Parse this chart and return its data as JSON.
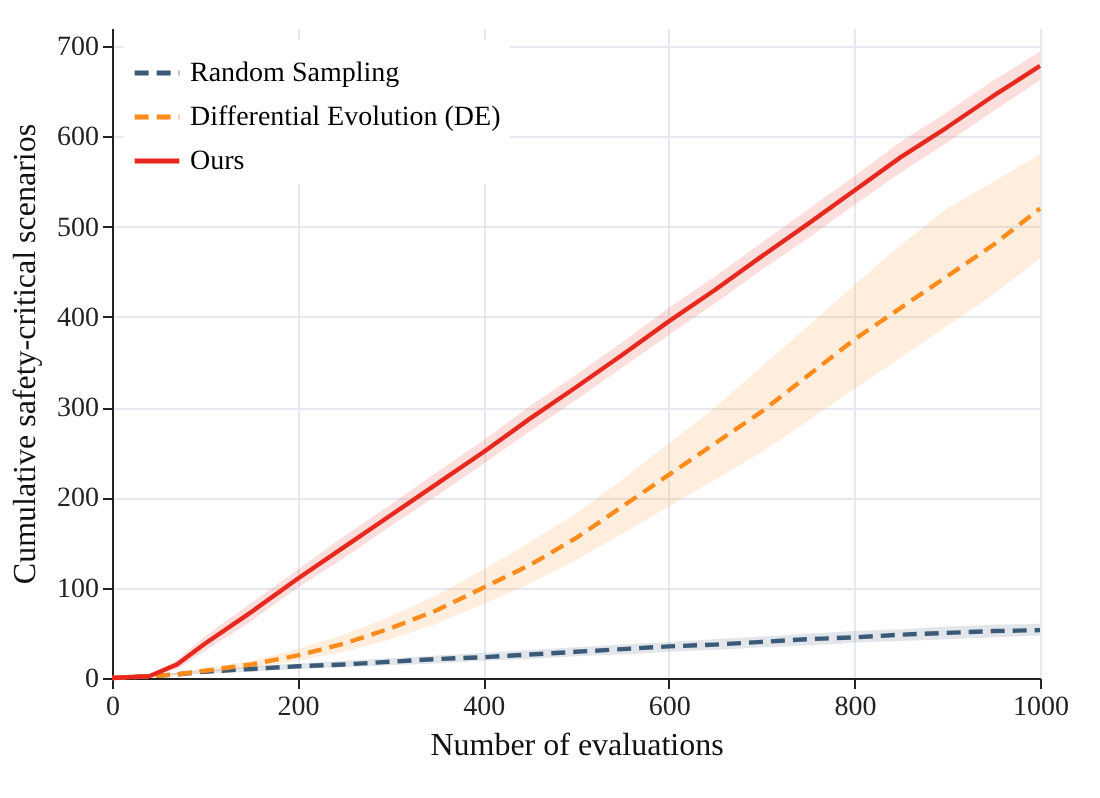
{
  "chart_data": {
    "type": "line",
    "xlabel": "Number of evaluations",
    "ylabel": "Cumulative safety-critical scenarios",
    "x": [
      0,
      40,
      70,
      100,
      150,
      200,
      250,
      300,
      350,
      400,
      450,
      500,
      550,
      600,
      650,
      700,
      750,
      800,
      850,
      900,
      950,
      1000
    ],
    "series": [
      {
        "name": "Random Sampling",
        "color": "#3b5a78",
        "line_style": "dashed",
        "values": [
          0,
          2,
          4,
          7,
          10,
          13,
          15,
          18,
          21,
          23,
          26,
          29,
          32,
          35,
          37,
          40,
          43,
          45,
          48,
          50,
          52,
          53
        ],
        "lower": [
          0,
          1,
          3,
          5,
          7,
          10,
          12,
          14,
          16,
          19,
          21,
          24,
          26,
          29,
          31,
          34,
          36,
          39,
          41,
          43,
          45,
          47
        ],
        "upper": [
          0,
          3,
          6,
          9,
          13,
          16,
          19,
          22,
          25,
          28,
          31,
          34,
          37,
          40,
          43,
          46,
          49,
          52,
          54,
          57,
          59,
          60
        ]
      },
      {
        "name": "Differential Evolution (DE)",
        "color": "#ff8c1a",
        "line_style": "dashed",
        "values": [
          0,
          2,
          4,
          8,
          15,
          25,
          38,
          55,
          75,
          100,
          125,
          155,
          190,
          225,
          260,
          295,
          335,
          375,
          410,
          445,
          480,
          520
        ],
        "lower": [
          0,
          1,
          3,
          6,
          11,
          19,
          29,
          43,
          60,
          82,
          104,
          131,
          160,
          190,
          220,
          250,
          285,
          320,
          355,
          390,
          425,
          465
        ],
        "upper": [
          0,
          3,
          6,
          11,
          19,
          32,
          48,
          68,
          92,
          120,
          150,
          182,
          220,
          260,
          300,
          345,
          390,
          435,
          480,
          520,
          550,
          580
        ]
      },
      {
        "name": "Ours",
        "color": "#e8281e",
        "line_style": "solid",
        "values": [
          0,
          2,
          15,
          38,
          73,
          110,
          145,
          180,
          215,
          250,
          287,
          322,
          358,
          395,
          430,
          467,
          503,
          540,
          577,
          610,
          645,
          678
        ],
        "lower": [
          0,
          1,
          10,
          30,
          63,
          100,
          133,
          168,
          202,
          237,
          273,
          308,
          344,
          380,
          415,
          452,
          487,
          524,
          560,
          593,
          628,
          662
        ],
        "upper": [
          0,
          3,
          20,
          46,
          83,
          120,
          157,
          192,
          228,
          263,
          301,
          336,
          372,
          410,
          445,
          482,
          519,
          556,
          594,
          627,
          662,
          694
        ]
      }
    ],
    "xlim": [
      0,
      1000
    ],
    "xticks": [
      0,
      200,
      400,
      600,
      800,
      1000
    ],
    "ylim": [
      0,
      720
    ],
    "yticks": [
      0,
      100,
      200,
      300,
      400,
      500,
      600,
      700
    ],
    "grid": true,
    "legend": "top left"
  }
}
